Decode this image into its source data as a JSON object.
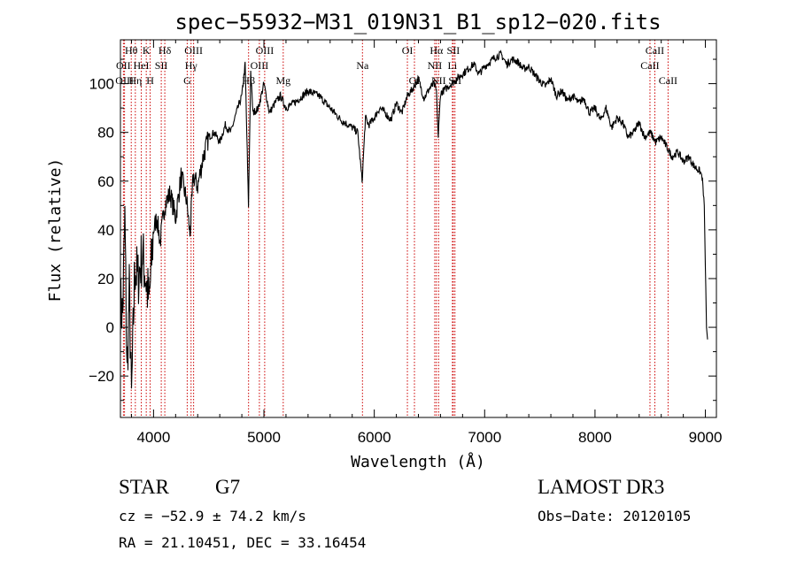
{
  "chart_data": {
    "type": "line",
    "title": "spec−55932−M31_019N31_B1_sp12−020.fits",
    "xlabel": "Wavelength (Å)",
    "ylabel": "Flux (relative)",
    "xlim": [
      3700,
      9100
    ],
    "ylim": [
      -37,
      118
    ],
    "x_ticks": [
      4000,
      5000,
      6000,
      7000,
      8000,
      9000
    ],
    "y_ticks": [
      -20,
      0,
      20,
      40,
      60,
      80,
      100
    ],
    "x_tick_labels": [
      "4000",
      "5000",
      "6000",
      "7000",
      "8000",
      "9000"
    ],
    "y_tick_labels": [
      "−20",
      "0",
      "20",
      "40",
      "60",
      "80",
      "100"
    ],
    "series": [
      {
        "name": "spectrum",
        "x": [
          3700,
          3720,
          3740,
          3760,
          3780,
          3800,
          3830,
          3860,
          3900,
          3930,
          3960,
          4000,
          4030,
          4060,
          4100,
          4150,
          4200,
          4250,
          4300,
          4330,
          4360,
          4400,
          4450,
          4500,
          4550,
          4600,
          4650,
          4700,
          4750,
          4800,
          4830,
          4860,
          4880,
          4900,
          4950,
          5000,
          5050,
          5100,
          5150,
          5200,
          5300,
          5400,
          5500,
          5600,
          5700,
          5800,
          5850,
          5890,
          5920,
          5950,
          6000,
          6050,
          6100,
          6150,
          6200,
          6250,
          6300,
          6350,
          6400,
          6450,
          6500,
          6540,
          6563,
          6580,
          6600,
          6650,
          6700,
          6750,
          6800,
          6850,
          6900,
          6950,
          7000,
          7050,
          7100,
          7150,
          7200,
          7250,
          7300,
          7350,
          7400,
          7450,
          7500,
          7550,
          7600,
          7650,
          7700,
          7750,
          7800,
          7850,
          7900,
          7950,
          8000,
          8050,
          8100,
          8150,
          8200,
          8250,
          8300,
          8350,
          8400,
          8450,
          8500,
          8550,
          8600,
          8650,
          8700,
          8750,
          8800,
          8850,
          8900,
          8950,
          8970,
          8990,
          9000,
          9010,
          9020
        ],
        "y": [
          10,
          5,
          45,
          -20,
          15,
          -30,
          25,
          20,
          30,
          20,
          10,
          40,
          45,
          35,
          50,
          55,
          45,
          62,
          52,
          38,
          62,
          58,
          70,
          78,
          80,
          76,
          83,
          80,
          88,
          95,
          108,
          50,
          105,
          88,
          90,
          100,
          88,
          92,
          95,
          90,
          93,
          97,
          95,
          90,
          85,
          82,
          80,
          60,
          86,
          83,
          86,
          90,
          88,
          85,
          92,
          88,
          95,
          98,
          102,
          94,
          98,
          100,
          97,
          78,
          96,
          98,
          100,
          102,
          104,
          106,
          108,
          104,
          107,
          109,
          111,
          112,
          108,
          110,
          109,
          106,
          107,
          104,
          101,
          99,
          102,
          95,
          97,
          93,
          95,
          92,
          94,
          88,
          90,
          85,
          90,
          82,
          86,
          84,
          78,
          80,
          84,
          78,
          80,
          76,
          78,
          74,
          70,
          72,
          68,
          70,
          66,
          64,
          62,
          50,
          25,
          0,
          -5
        ]
      }
    ],
    "lines": [
      {
        "label": "Hθ",
        "x": 3798,
        "row": 1
      },
      {
        "label": "OII",
        "x": 3727,
        "row": 2
      },
      {
        "label": "OIII",
        "x": 3737,
        "row": 3
      },
      {
        "label": "K",
        "x": 3934,
        "row": 1
      },
      {
        "label": "HeI",
        "x": 3889,
        "row": 2
      },
      {
        "label": "Hη",
        "x": 3835,
        "row": 3
      },
      {
        "label": "SII",
        "x": 4070,
        "row": 2
      },
      {
        "label": "H",
        "x": 3969,
        "row": 3
      },
      {
        "label": "Hδ",
        "x": 4102,
        "row": 1
      },
      {
        "label": "OIII",
        "x": 4363,
        "row": 1
      },
      {
        "label": "Hγ",
        "x": 4340,
        "row": 2
      },
      {
        "label": "G",
        "x": 4305,
        "row": 3
      },
      {
        "label": "OIII",
        "x": 5007,
        "row": 1
      },
      {
        "label": "OIII",
        "x": 4959,
        "row": 2
      },
      {
        "label": "Hβ",
        "x": 4861,
        "row": 3
      },
      {
        "label": "Mg",
        "x": 5175,
        "row": 3
      },
      {
        "label": "Na",
        "x": 5893,
        "row": 2
      },
      {
        "label": "OI",
        "x": 6300,
        "row": 1
      },
      {
        "label": "OI",
        "x": 6364,
        "row": 3
      },
      {
        "label": "Hα",
        "x": 6563,
        "row": 1
      },
      {
        "label": "SII",
        "x": 6716,
        "row": 1
      },
      {
        "label": "NII",
        "x": 6548,
        "row": 2
      },
      {
        "label": "Li",
        "x": 6708,
        "row": 2
      },
      {
        "label": "NII",
        "x": 6583,
        "row": 3
      },
      {
        "label": "SII",
        "x": 6731,
        "row": 3
      },
      {
        "label": "CaII",
        "x": 8542,
        "row": 1
      },
      {
        "label": "CaII",
        "x": 8498,
        "row": 2
      },
      {
        "label": "CaII",
        "x": 8662,
        "row": 3
      }
    ]
  },
  "info": {
    "class": "STAR",
    "subclass": "G7",
    "survey": "LAMOST DR3",
    "cz": "cz = −52.9 ± 74.2 km/s",
    "obs_date": "Obs−Date: 20120105",
    "radec": "RA =  21.10451, DEC =  33.16454"
  }
}
